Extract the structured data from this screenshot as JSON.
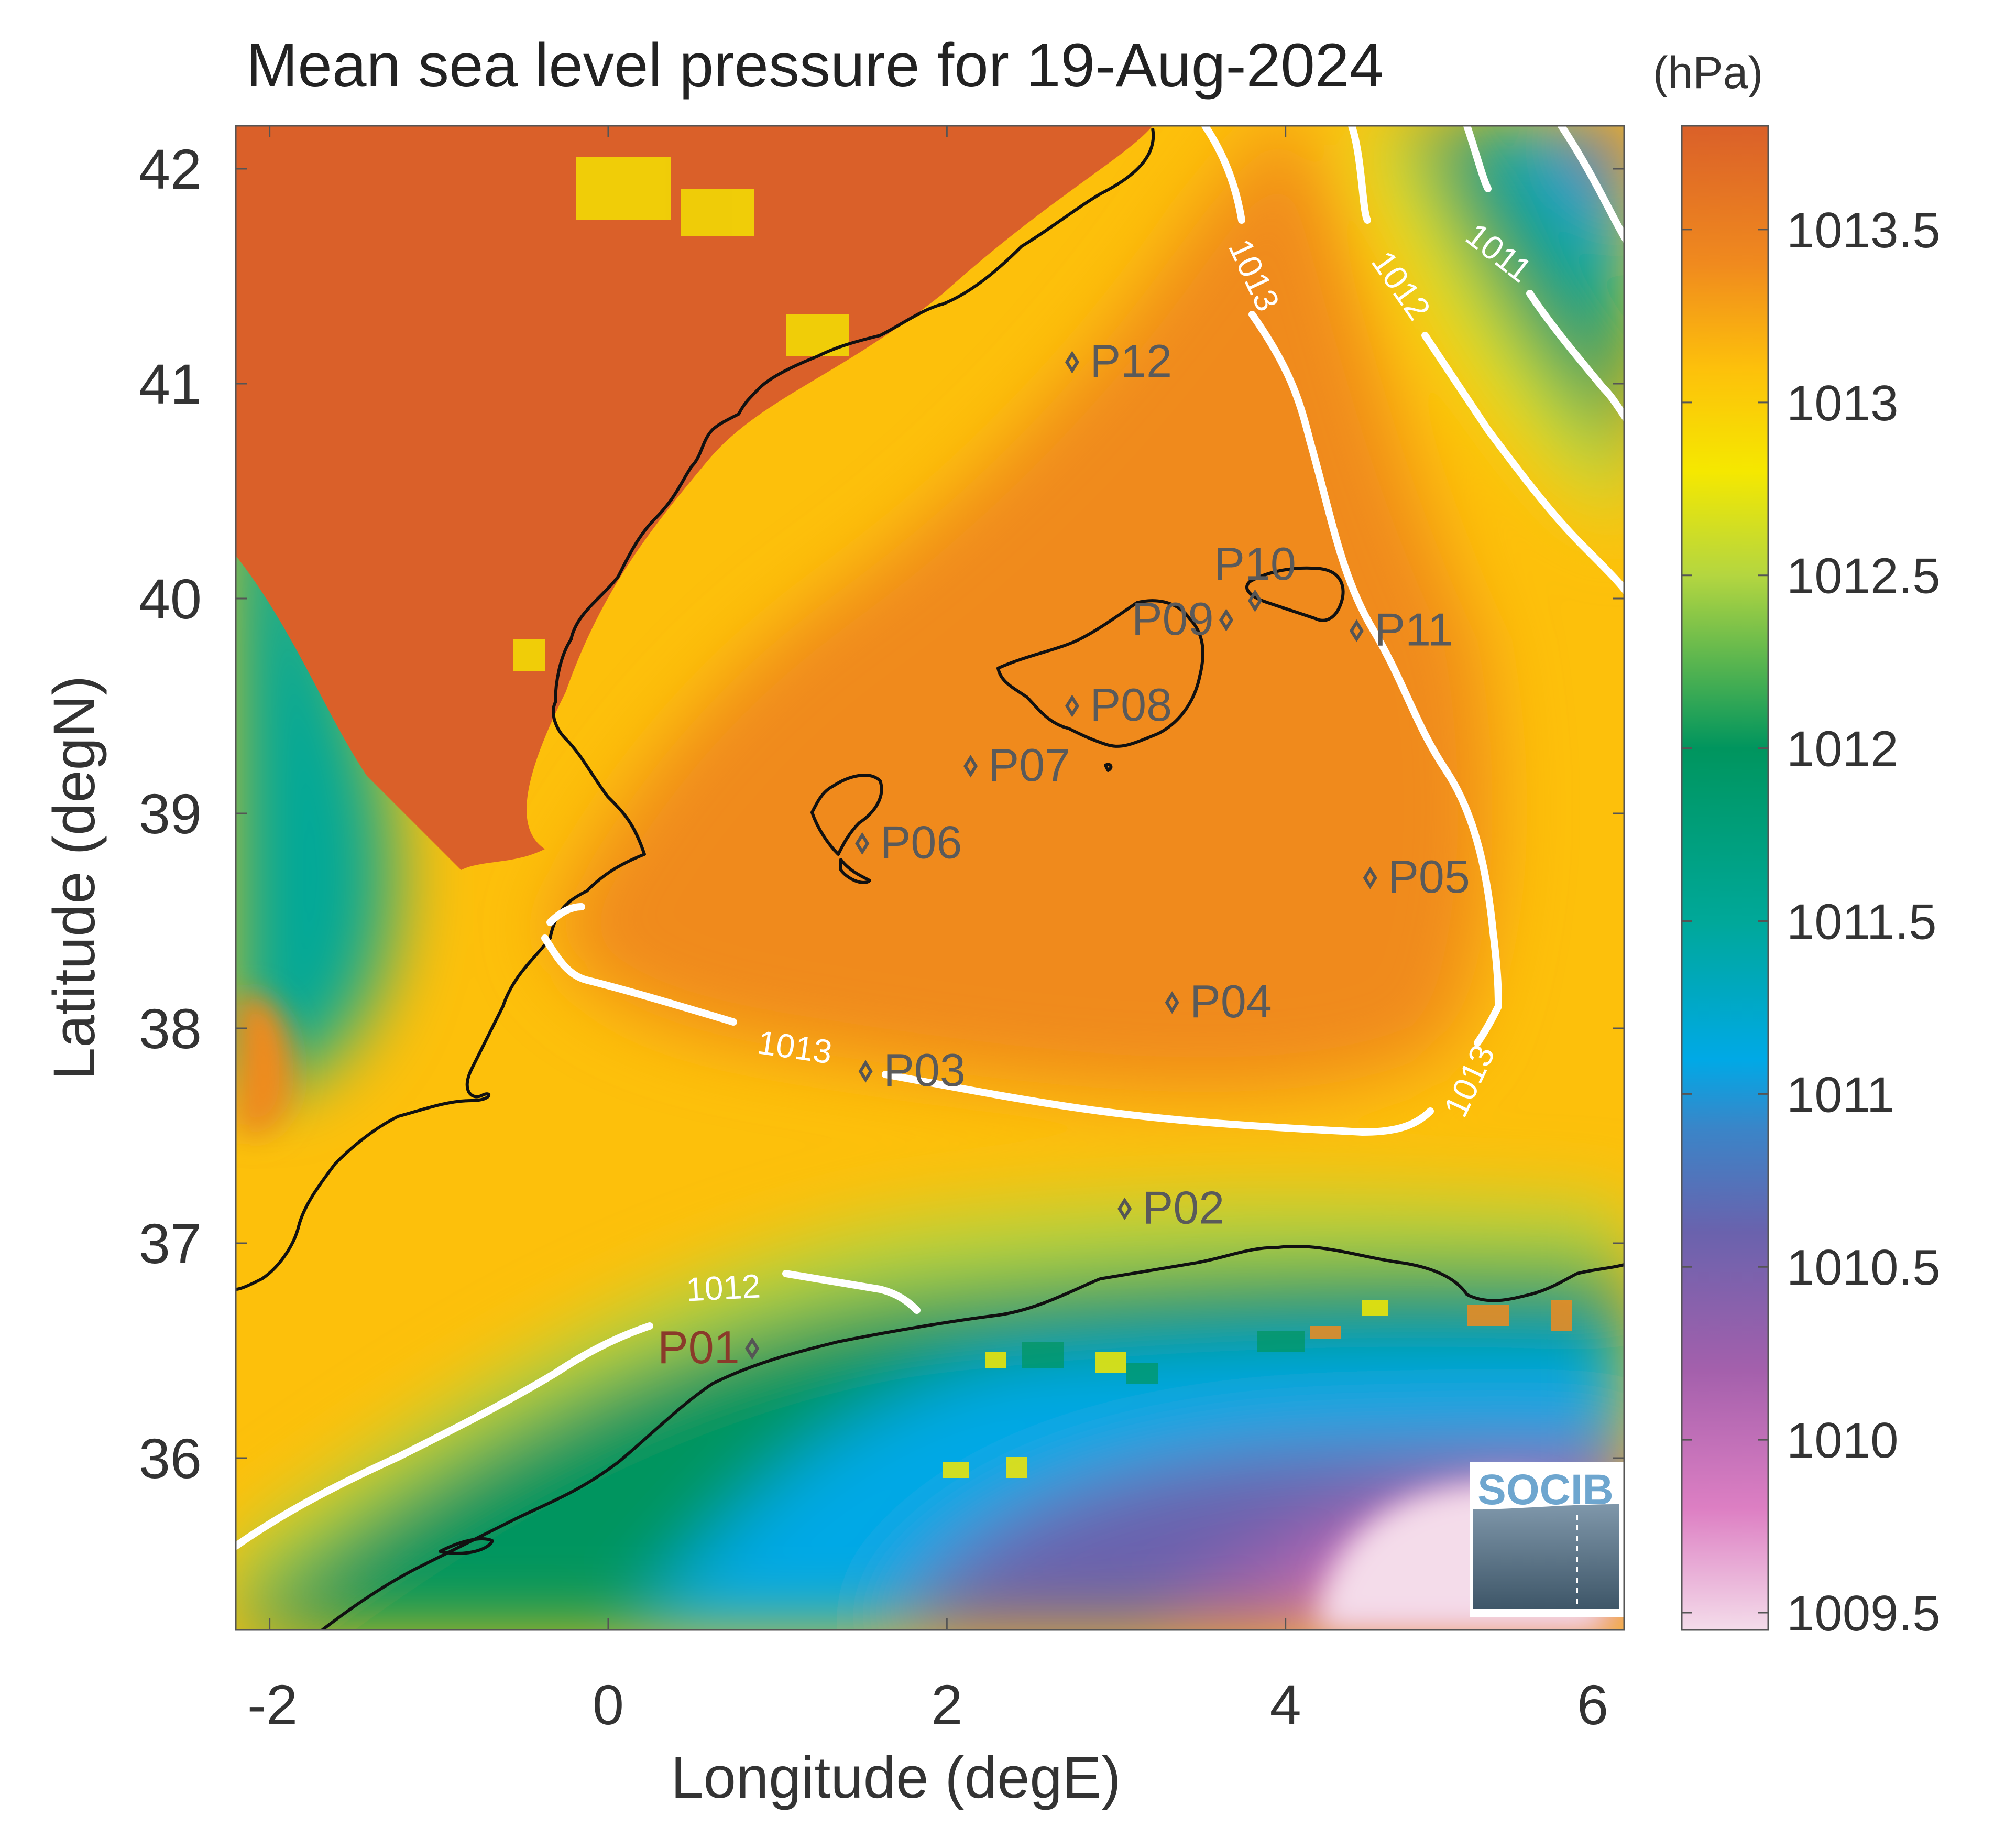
{
  "title": "Mean sea level pressure for 19-Aug-2024",
  "units": "(hPa)",
  "xlabel": "Longitude (degE)",
  "ylabel": "Latitude (degN)",
  "logo_text": "SOCIB",
  "chart_data": {
    "type": "heatmap",
    "xlim": [
      -2.2,
      6
    ],
    "ylim": [
      35.2,
      42.2
    ],
    "x_ticks": [
      -2,
      0,
      2,
      4,
      6
    ],
    "x_tick_labels": [
      "-2",
      "0",
      "2",
      "4",
      "6"
    ],
    "y_ticks": [
      36,
      37,
      38,
      39,
      40,
      41,
      42
    ],
    "y_tick_labels": [
      "36",
      "37",
      "38",
      "39",
      "40",
      "41",
      "42"
    ],
    "colorbar": {
      "range": [
        1009.45,
        1013.8
      ],
      "ticks": [
        1009.5,
        1010,
        1010.5,
        1011,
        1011.5,
        1012,
        1012.5,
        1013,
        1013.5
      ],
      "tick_labels": [
        "1009.5",
        "1010",
        "1010.5",
        "1011",
        "1011.5",
        "1012",
        "1012.5",
        "1013",
        "1013.5"
      ],
      "colors": [
        {
          "v": 1009.45,
          "c": "#f4dcea"
        },
        {
          "v": 1009.8,
          "c": "#dd7fc3"
        },
        {
          "v": 1010.2,
          "c": "#a460ac"
        },
        {
          "v": 1010.6,
          "c": "#6a62ad"
        },
        {
          "v": 1010.9,
          "c": "#3a85c8"
        },
        {
          "v": 1011.1,
          "c": "#00a9e6"
        },
        {
          "v": 1011.5,
          "c": "#00a899"
        },
        {
          "v": 1012.0,
          "c": "#00955e"
        },
        {
          "v": 1012.5,
          "c": "#b4d640"
        },
        {
          "v": 1012.8,
          "c": "#f5e800"
        },
        {
          "v": 1013.1,
          "c": "#fdc00b"
        },
        {
          "v": 1013.4,
          "c": "#f08a1e"
        },
        {
          "v": 1013.8,
          "c": "#da6029"
        }
      ]
    },
    "contour_labels": [
      {
        "text": "1013",
        "lon": 3.8,
        "lat": 41.5
      },
      {
        "text": "1012",
        "lon": 4.67,
        "lat": 41.45
      },
      {
        "text": "1011",
        "lon": 5.25,
        "lat": 41.6
      },
      {
        "text": "1013",
        "lon": 1.1,
        "lat": 37.9
      },
      {
        "text": "1013",
        "lon": 5.1,
        "lat": 37.75
      },
      {
        "text": "1012",
        "lon": 0.68,
        "lat": 36.78
      }
    ],
    "stations": [
      {
        "name": "P01",
        "lon": 0.85,
        "lat": 36.51
      },
      {
        "name": "P02",
        "lon": 3.05,
        "lat": 37.16
      },
      {
        "name": "P03",
        "lon": 1.52,
        "lat": 37.8
      },
      {
        "name": "P04",
        "lon": 3.33,
        "lat": 38.12
      },
      {
        "name": "P05",
        "lon": 4.5,
        "lat": 38.7
      },
      {
        "name": "P06",
        "lon": 1.5,
        "lat": 38.86
      },
      {
        "name": "P07",
        "lon": 2.14,
        "lat": 39.22
      },
      {
        "name": "P08",
        "lon": 2.74,
        "lat": 39.5
      },
      {
        "name": "P09",
        "lon": 3.65,
        "lat": 39.9
      },
      {
        "name": "P10",
        "lon": 3.82,
        "lat": 39.99
      },
      {
        "name": "P11",
        "lon": 4.42,
        "lat": 39.85
      },
      {
        "name": "P12",
        "lon": 2.74,
        "lat": 41.1
      }
    ]
  }
}
